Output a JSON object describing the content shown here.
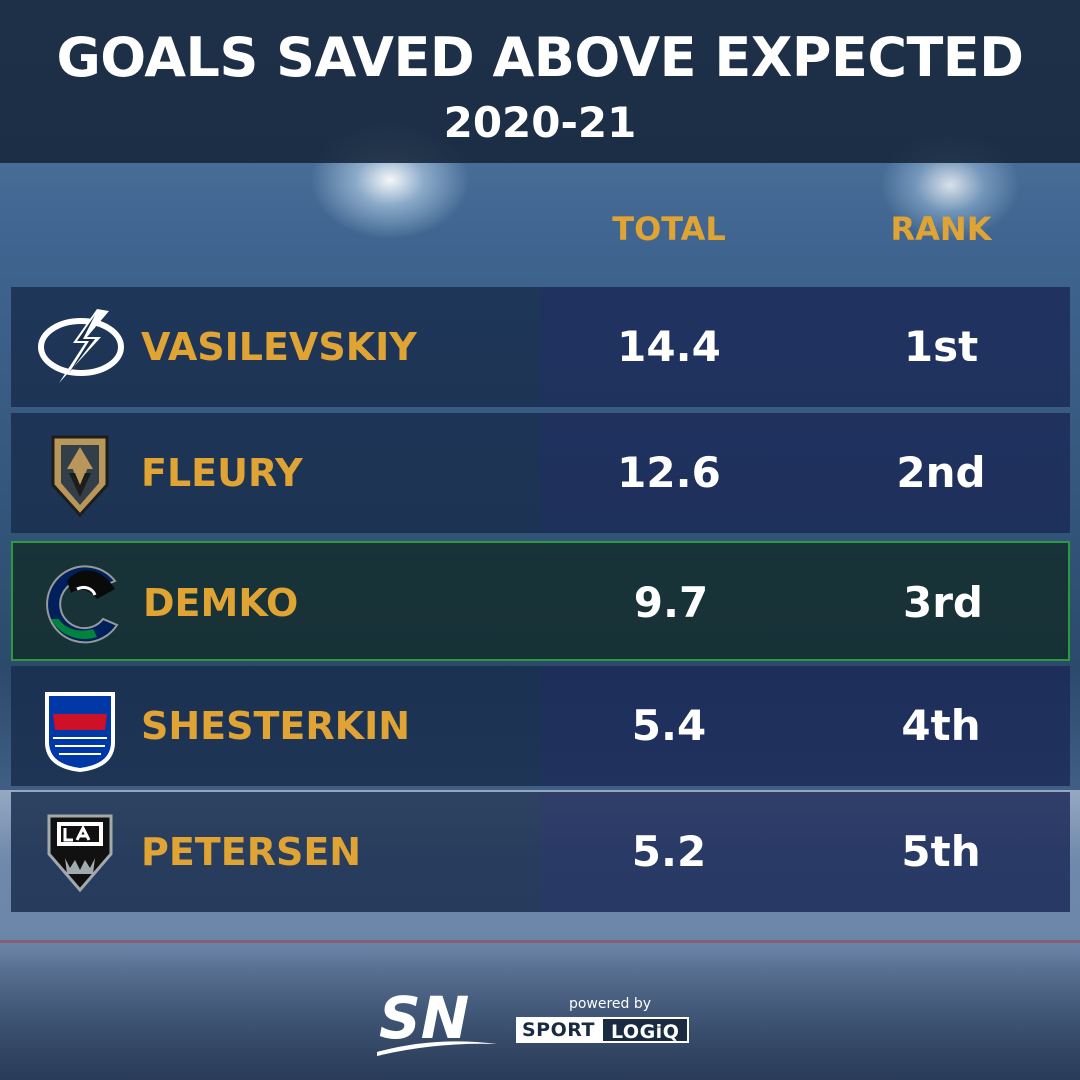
{
  "header": {
    "title": "GOALS SAVED ABOVE EXPECTED",
    "season": "2020-21"
  },
  "columns": {
    "total": "TOTAL",
    "rank": "RANK"
  },
  "rows": [
    {
      "player": "VASILEVSKIY",
      "total": "14.4",
      "rank": "1st",
      "logo": "tampa-bay-lightning-logo",
      "highlighted": false
    },
    {
      "player": "FLEURY",
      "total": "12.6",
      "rank": "2nd",
      "logo": "vegas-golden-knights-logo",
      "highlighted": false
    },
    {
      "player": "DEMKO",
      "total": "9.7",
      "rank": "3rd",
      "logo": "vancouver-canucks-logo",
      "highlighted": true
    },
    {
      "player": "SHESTERKIN",
      "total": "5.4",
      "rank": "4th",
      "logo": "new-york-rangers-logo",
      "highlighted": false
    },
    {
      "player": "PETERSEN",
      "total": "5.2",
      "rank": "5th",
      "logo": "los-angeles-kings-logo",
      "highlighted": false
    }
  ],
  "footer": {
    "brand": "SN",
    "powered_by": "powered by",
    "sponsor_part1": "SPORT",
    "sponsor_part2": "LOGiQ"
  },
  "colors": {
    "accent": "#e0a434",
    "highlight_border": "#2a9a3a"
  }
}
